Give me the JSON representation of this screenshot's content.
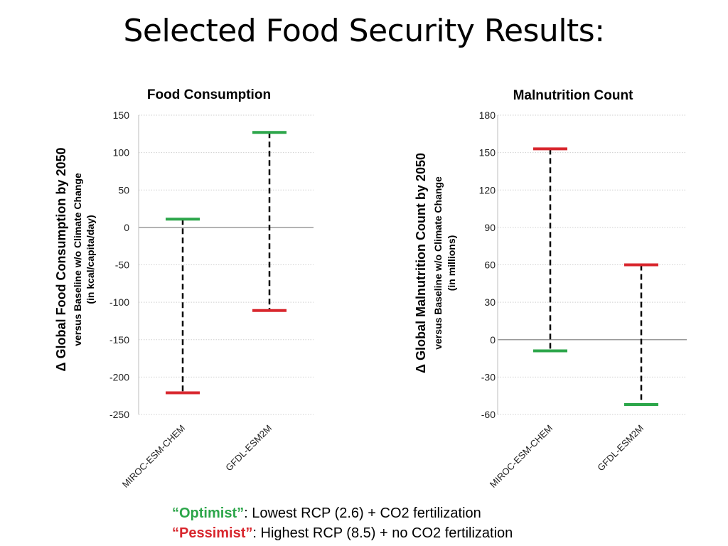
{
  "slide": {
    "title": "Selected Food Security Results:"
  },
  "legend": {
    "optimist_label": "“Optimist”",
    "optimist_text": ": Lowest RCP (2.6) + CO2 fertilization",
    "pessimist_label": "“Pessimist”",
    "pessimist_text": ": Highest RCP (8.5) + no CO2 fertilization",
    "optimist_color": "#2ca64a",
    "pessimist_color": "#d8262d"
  },
  "chart_data": [
    {
      "type": "range",
      "title": "Food Consumption",
      "ylabel": "Δ Global Food Consumption by 2050",
      "ylabel_sub1": "versus Baseline w/o Climate Change",
      "ylabel_sub2": "(in kcal/capita/day)",
      "ylim": [
        -250,
        150
      ],
      "yticks": [
        150,
        100,
        50,
        0,
        -50,
        -100,
        -150,
        -200,
        -250
      ],
      "categories": [
        "MIROC-ESM-CHEM",
        "GFDL-ESM2M"
      ],
      "series": [
        {
          "name": "Optimist",
          "color": "#2ca64a",
          "values": [
            11,
            127
          ]
        },
        {
          "name": "Pessimist",
          "color": "#d8262d",
          "values": [
            -221,
            -111
          ]
        }
      ],
      "grid": true
    },
    {
      "type": "range",
      "title": "Malnutrition Count",
      "ylabel": "Δ Global Malnutrition Count by 2050",
      "ylabel_sub1": "versus Baseline w/o Climate Change",
      "ylabel_sub2": "(in millions)",
      "ylim": [
        -60,
        180
      ],
      "yticks": [
        180,
        150,
        120,
        90,
        60,
        30,
        0,
        -30,
        -60
      ],
      "categories": [
        "MIROC-ESM-CHEM",
        "GFDL-ESM2M"
      ],
      "series": [
        {
          "name": "Optimist",
          "color": "#2ca64a",
          "values": [
            -9,
            -52
          ]
        },
        {
          "name": "Pessimist",
          "color": "#d8262d",
          "values": [
            153,
            60
          ]
        }
      ],
      "grid": true
    }
  ]
}
